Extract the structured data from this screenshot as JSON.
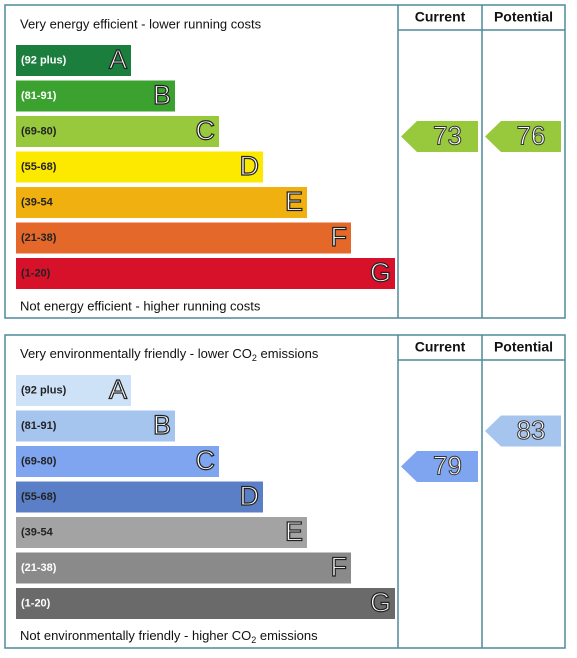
{
  "panels": [
    {
      "top_label": "Very energy efficient - lower running costs",
      "bottom_label": "Not energy efficient - higher running costs",
      "headers": [
        "Current",
        "Potential"
      ],
      "bands": [
        {
          "range": "(92 plus)",
          "letter": "A",
          "color": "#1b7e3c",
          "text_color": "#ffffff"
        },
        {
          "range": "(81-91)",
          "letter": "B",
          "color": "#3ba22f",
          "text_color": "#ffffff"
        },
        {
          "range": "(69-80)",
          "letter": "C",
          "color": "#98c93c",
          "text_color": "#222222"
        },
        {
          "range": "(55-68)",
          "letter": "D",
          "color": "#fde800",
          "text_color": "#222222"
        },
        {
          "range": "(39-54",
          "letter": "E",
          "color": "#f0b00f",
          "text_color": "#222222"
        },
        {
          "range": "(21-38)",
          "letter": "F",
          "color": "#e4682a",
          "text_color": "#222222"
        },
        {
          "range": "(1-20)",
          "letter": "G",
          "color": "#d8112b",
          "text_color": "#222222"
        }
      ],
      "current": 73,
      "potential": 76
    },
    {
      "top_label": [
        "Very environmentally friendly - lower CO",
        "2",
        " emissions"
      ],
      "bottom_label": [
        "Not environmentally friendly - higher CO",
        "2",
        " emissions"
      ],
      "headers": [
        "Current",
        "Potential"
      ],
      "bands": [
        {
          "range": "(92 plus)",
          "letter": "A",
          "color": "#cde2f7",
          "text_color": "#222222"
        },
        {
          "range": "(81-91)",
          "letter": "B",
          "color": "#a5c4ee",
          "text_color": "#222222"
        },
        {
          "range": "(69-80)",
          "letter": "C",
          "color": "#7fa4f0",
          "text_color": "#222222"
        },
        {
          "range": "(55-68)",
          "letter": "D",
          "color": "#5b7fc6",
          "text_color": "#222222"
        },
        {
          "range": "(39-54",
          "letter": "E",
          "color": "#a3a3a3",
          "text_color": "#222222"
        },
        {
          "range": "(21-38)",
          "letter": "F",
          "color": "#8a8a8a",
          "text_color": "#ffffff"
        },
        {
          "range": "(1-20)",
          "letter": "G",
          "color": "#6a6a6a",
          "text_color": "#ffffff"
        }
      ],
      "current": 79,
      "potential": 83
    }
  ]
}
